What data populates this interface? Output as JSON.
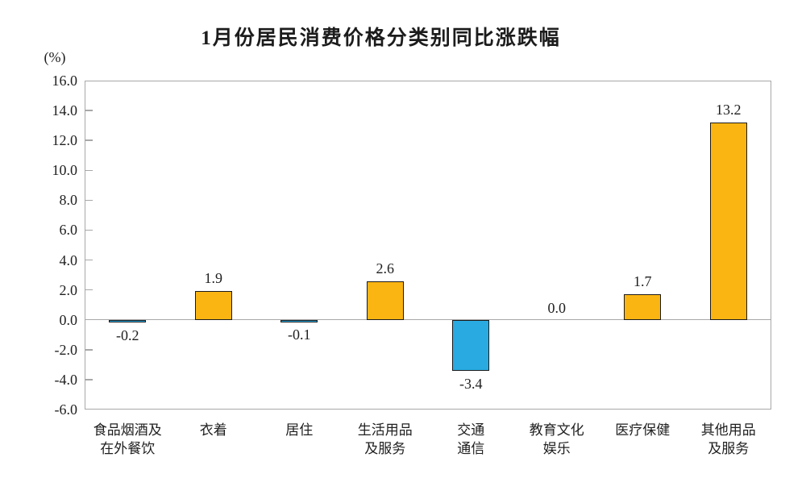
{
  "chart_data": {
    "type": "bar",
    "title": "1月份居民消费价格分类别同比涨跌幅",
    "unit": "(%)",
    "categories": [
      [
        "食品烟酒及",
        "在外餐饮"
      ],
      [
        "衣着"
      ],
      [
        "居住"
      ],
      [
        "生活用品",
        "及服务"
      ],
      [
        "交通",
        "通信"
      ],
      [
        "教育文化",
        "娱乐"
      ],
      [
        "医疗保健"
      ],
      [
        "其他用品",
        "及服务"
      ]
    ],
    "values": [
      -0.2,
      1.9,
      -0.1,
      2.6,
      -3.4,
      0.0,
      1.7,
      13.2
    ],
    "value_labels": [
      "-0.2",
      "1.9",
      "-0.1",
      "2.6",
      "-3.4",
      "0.0",
      "1.7",
      "13.2"
    ],
    "ylim": [
      -6.0,
      16.0
    ],
    "ytick_step": 2.0,
    "yticks": [
      16.0,
      14.0,
      12.0,
      10.0,
      8.0,
      6.0,
      4.0,
      2.0,
      0.0,
      -2.0,
      -4.0,
      -6.0
    ],
    "ytick_labels": [
      "16.0",
      "14.0",
      "12.0",
      "10.0",
      "8.0",
      "6.0",
      "4.0",
      "2.0",
      "0.0",
      "-2.0",
      "-4.0",
      "-6.0"
    ],
    "grid": false,
    "legend": "none",
    "bar_label_position": "outside-end",
    "colors": {
      "positive": "#FBB513",
      "negative": "#29ABE2",
      "bar_border": "#1B1B1B",
      "axis": "#A8A8A8",
      "text": "#1F1F1F"
    }
  }
}
